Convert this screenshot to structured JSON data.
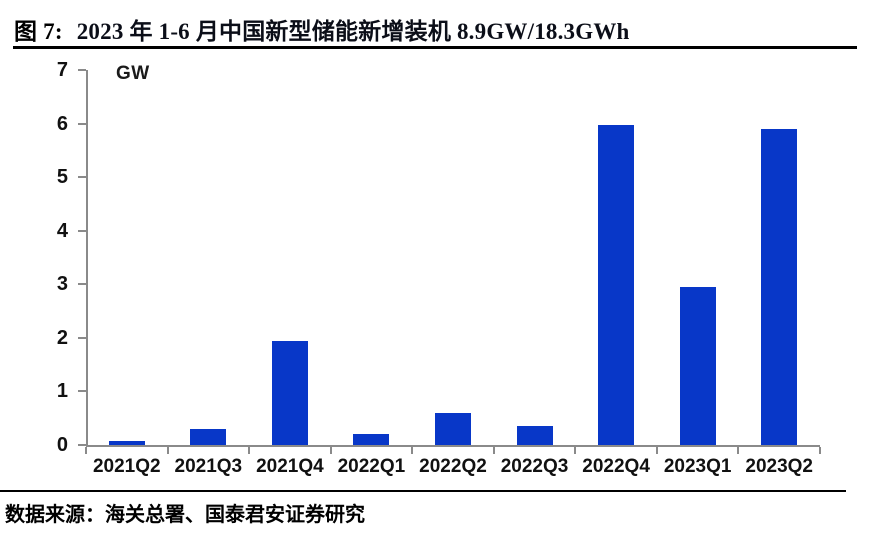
{
  "header": {
    "figure_label": "图 7:",
    "title": "2023 年 1-6 月中国新型储能新增装机 8.9GW/18.3GWh"
  },
  "footer": {
    "source": "数据来源：海关总署、国泰君安证券研究"
  },
  "colors": {
    "bar": "#0837c8",
    "axis": "#8a8a8a",
    "rule": "#000000"
  },
  "chart_data": {
    "type": "bar",
    "title": "2023 年 1-6 月中国新型储能新增装机 8.9GW/18.3GWh",
    "unit_label": "GW",
    "xlabel": "",
    "ylabel": "GW",
    "categories": [
      "2021Q2",
      "2021Q3",
      "2021Q4",
      "2022Q1",
      "2022Q2",
      "2022Q3",
      "2022Q4",
      "2023Q1",
      "2023Q2"
    ],
    "values": [
      0.08,
      0.3,
      1.95,
      0.2,
      0.6,
      0.35,
      5.97,
      2.95,
      5.9
    ],
    "ylim": [
      0,
      7
    ],
    "yticks": [
      0,
      1,
      2,
      3,
      4,
      5,
      6,
      7
    ],
    "grid": false,
    "legend": false,
    "bar_color": "#0837c8"
  }
}
